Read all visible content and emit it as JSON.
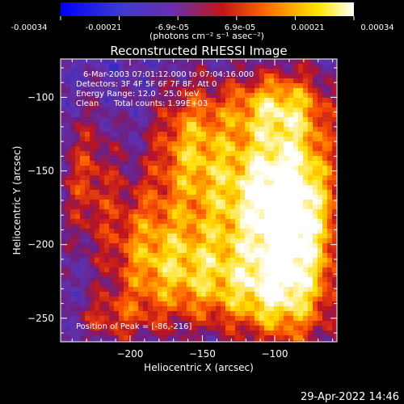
{
  "colorbar": {
    "ticks": [
      "-0.00034",
      "-0.00021",
      "-6.9e-05",
      "6.9e-05",
      "0.00021",
      "0.00034"
    ],
    "units": "(photons cm⁻² s⁻¹ asec⁻²)",
    "colors": [
      "#0000ff",
      "#6a2fb0",
      "#c0151a",
      "#ff6a00",
      "#ffe600",
      "#ffffff"
    ]
  },
  "chart_data": {
    "type": "heatmap",
    "title": "Reconstructed RHESSI Image",
    "xlabel": "Heliocentric X (arcsec)",
    "ylabel": "Heliocentric Y (arcsec)",
    "xlim": [
      -248,
      -57
    ],
    "ylim": [
      -266,
      -74
    ],
    "xticks": [
      -200,
      -150,
      -100
    ],
    "yticks": [
      -100,
      -150,
      -200,
      -250
    ],
    "value_range": [
      -0.00034,
      0.00034
    ],
    "peak_position": [
      -86,
      -216
    ],
    "annotations": {
      "time": "6-Mar-2003 07:01:12.000 to 07:04:16.000",
      "detectors": "Detectors: 3F 4F 5F 6F 7F 8F, Att 0",
      "energy": "Energy Range: 12.0 - 25.0 keV",
      "method": "Clean",
      "counts": "Total counts: 1.99E+03",
      "peak": "Position of Peak = [-86,-216]"
    },
    "blobs": [
      {
        "x": -85,
        "y": -185,
        "amp": 1.0,
        "sx": 22,
        "sy": 55
      },
      {
        "x": -120,
        "y": -165,
        "amp": 0.75,
        "sx": 30,
        "sy": 40
      },
      {
        "x": -160,
        "y": -130,
        "amp": 0.55,
        "sx": 18,
        "sy": 30
      },
      {
        "x": -190,
        "y": -205,
        "amp": 0.6,
        "sx": 20,
        "sy": 35
      },
      {
        "x": -155,
        "y": -220,
        "amp": 0.55,
        "sx": 22,
        "sy": 25
      },
      {
        "x": -110,
        "y": -235,
        "amp": 0.5,
        "sx": 25,
        "sy": 20
      },
      {
        "x": -230,
        "y": -155,
        "amp": 0.45,
        "sx": 15,
        "sy": 35
      },
      {
        "x": -100,
        "y": -105,
        "amp": 0.5,
        "sx": 25,
        "sy": 15
      },
      {
        "x": -215,
        "y": -250,
        "amp": 0.35,
        "sx": 18,
        "sy": 12
      }
    ]
  },
  "timestamp": "29-Apr-2022 14:46"
}
